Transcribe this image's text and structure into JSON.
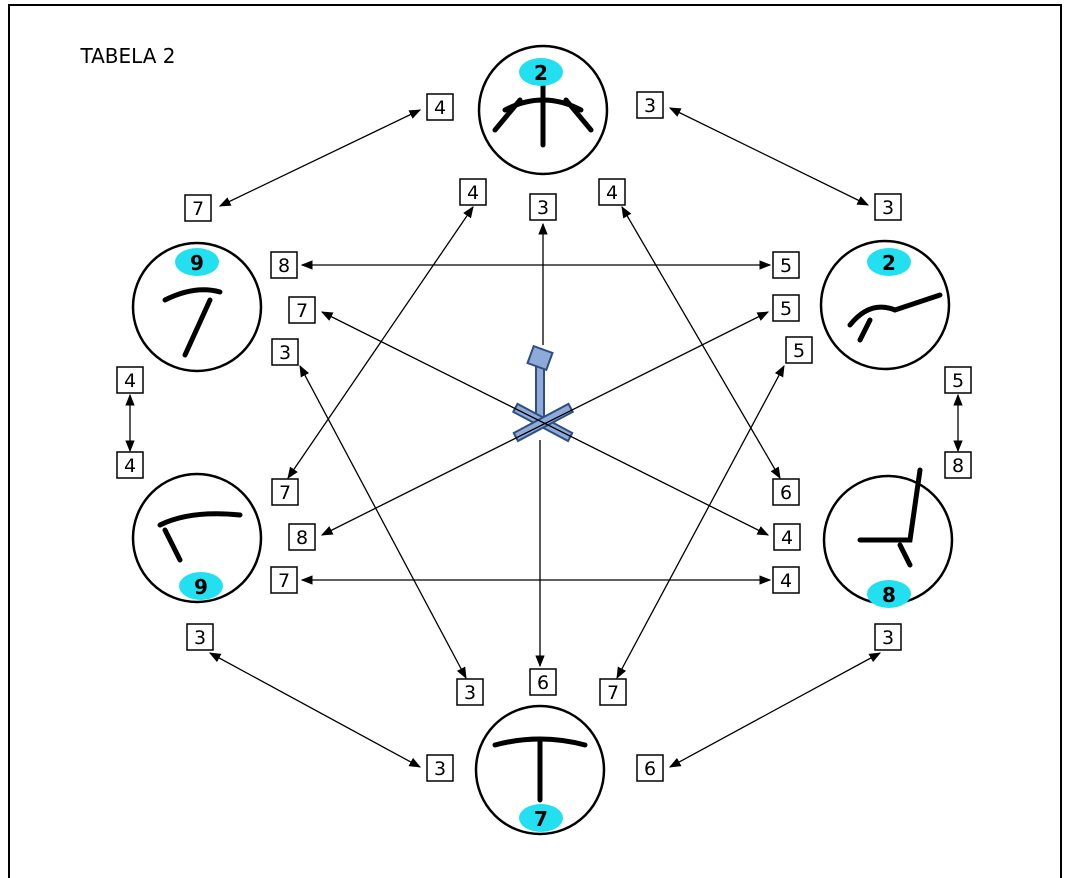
{
  "title": "TABELA 2",
  "nodes": [
    {
      "badge": 2
    },
    {
      "badge": 2
    },
    {
      "badge": 8
    },
    {
      "badge": 7
    },
    {
      "badge": 9
    },
    {
      "badge": 9
    }
  ],
  "center_edges": [
    {
      "label": 3
    },
    {
      "label": 6
    }
  ],
  "edges": [
    {
      "labels": [
        4,
        7
      ]
    },
    {
      "labels": [
        3,
        3
      ]
    },
    {
      "labels": [
        8,
        5
      ]
    },
    {
      "labels": [
        4,
        7
      ]
    },
    {
      "labels": [
        4,
        6
      ]
    },
    {
      "labels": [
        7,
        4
      ]
    },
    {
      "labels": [
        5,
        8
      ]
    },
    {
      "labels": [
        3,
        3
      ]
    },
    {
      "labels": [
        5,
        7
      ]
    },
    {
      "labels": [
        4,
        4
      ]
    },
    {
      "labels": [
        5,
        8
      ]
    },
    {
      "labels": [
        7,
        4
      ]
    },
    {
      "labels": [
        3,
        3
      ]
    },
    {
      "labels": [
        6,
        3
      ]
    }
  ]
}
